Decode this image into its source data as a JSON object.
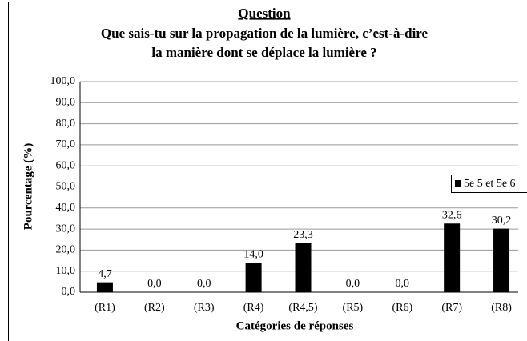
{
  "chart_data": {
    "type": "bar",
    "title": "Question",
    "subtitle": [
      "Que sais-tu sur la propagation de la lumière, c’est-à-dire",
      "la manière dont se déplace la lumière ?"
    ],
    "x_label": "Catégories de réponses",
    "y_label": "Pourcentage (%)",
    "categories": [
      "(R1)",
      "(R2)",
      "(R3)",
      "(R4)",
      "(R4,5)",
      "(R5)",
      "(R6)",
      "(R7)",
      "(R8)"
    ],
    "series": [
      {
        "name": "5e 5 et 5e 6",
        "color": "#000000",
        "values": [
          4.7,
          0,
          0,
          14,
          23.3,
          0,
          0,
          32.6,
          30.2
        ],
        "value_labels": [
          "4,7",
          "0,0",
          "0,0",
          "14,0",
          "23,3",
          "0,0",
          "0,0",
          "32,6",
          "30,2"
        ]
      }
    ],
    "ylim": [
      0,
      100
    ],
    "yticks": [
      {
        "value": 0,
        "label": "0,0"
      },
      {
        "value": 10,
        "label": "10,0"
      },
      {
        "value": 20,
        "label": "20,0"
      },
      {
        "value": 30,
        "label": "30,0"
      },
      {
        "value": 40,
        "label": "40,0"
      },
      {
        "value": 50,
        "label": "50,0"
      },
      {
        "value": 60,
        "label": "60,0"
      },
      {
        "value": 70,
        "label": "70,0"
      },
      {
        "value": 80,
        "label": "80,0"
      },
      {
        "value": 90,
        "label": "90,0"
      },
      {
        "value": 100,
        "label": "100,0"
      }
    ],
    "grid": true,
    "legend": "right"
  }
}
